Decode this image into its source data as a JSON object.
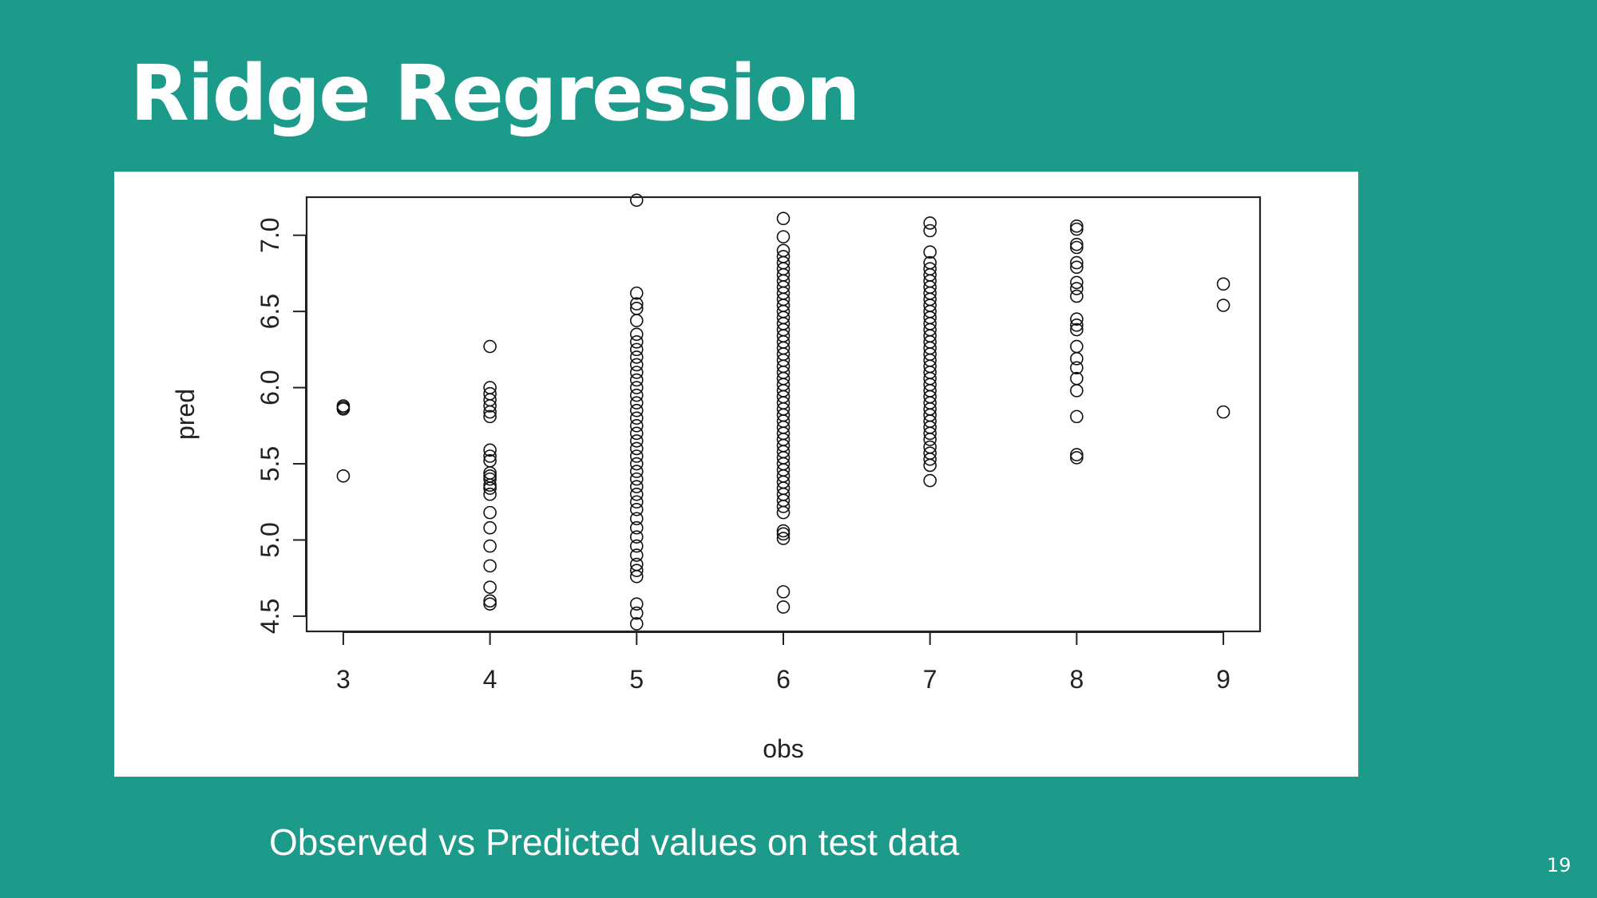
{
  "slide": {
    "title": "Ridge Regression",
    "caption": "Observed vs Predicted values on test data",
    "page_number": "19",
    "background_color": "#1c9a8a"
  },
  "chart_data": {
    "type": "scatter",
    "title": "",
    "xlabel": "obs",
    "ylabel": "pred",
    "xlim": [
      2.75,
      9.25
    ],
    "ylim": [
      4.4,
      7.25
    ],
    "x_ticks": [
      3,
      4,
      5,
      6,
      7,
      8,
      9
    ],
    "y_ticks": [
      4.5,
      5.0,
      5.5,
      6.0,
      6.5,
      7.0
    ],
    "x_tick_labels": [
      "3",
      "4",
      "5",
      "6",
      "7",
      "8",
      "9"
    ],
    "y_tick_labels": [
      "4.5",
      "5.0",
      "5.5",
      "6.0",
      "6.5",
      "7.0"
    ],
    "grid": false,
    "marker": "open-circle",
    "groups": [
      {
        "x": 3,
        "y": [
          5.42,
          5.86,
          5.87,
          5.88
        ]
      },
      {
        "x": 4,
        "y": [
          4.58,
          4.6,
          4.69,
          4.83,
          4.96,
          5.08,
          5.18,
          5.3,
          5.34,
          5.36,
          5.4,
          5.42,
          5.44,
          5.52,
          5.55,
          5.59,
          5.81,
          5.84,
          5.88,
          5.92,
          5.96,
          6.0,
          6.27
        ]
      },
      {
        "x": 5,
        "y": [
          4.45,
          4.52,
          4.58,
          4.76,
          4.8,
          4.84,
          4.9,
          4.96,
          5.02,
          5.08,
          5.14,
          5.2,
          5.25,
          5.3,
          5.35,
          5.4,
          5.45,
          5.5,
          5.55,
          5.6,
          5.65,
          5.7,
          5.75,
          5.8,
          5.85,
          5.9,
          5.95,
          6.0,
          6.05,
          6.1,
          6.15,
          6.2,
          6.25,
          6.3,
          6.35,
          6.44,
          6.52,
          6.55,
          6.62,
          7.23
        ]
      },
      {
        "x": 6,
        "y": [
          4.56,
          4.66,
          5.01,
          5.04,
          5.06,
          5.18,
          5.22,
          5.26,
          5.3,
          5.34,
          5.38,
          5.42,
          5.46,
          5.5,
          5.54,
          5.58,
          5.62,
          5.66,
          5.7,
          5.74,
          5.78,
          5.82,
          5.86,
          5.9,
          5.94,
          5.98,
          6.02,
          6.06,
          6.1,
          6.14,
          6.18,
          6.22,
          6.26,
          6.3,
          6.34,
          6.38,
          6.42,
          6.46,
          6.5,
          6.54,
          6.58,
          6.62,
          6.66,
          6.7,
          6.74,
          6.78,
          6.82,
          6.86,
          6.9,
          6.99,
          7.11
        ]
      },
      {
        "x": 7,
        "y": [
          5.39,
          5.49,
          5.53,
          5.57,
          5.61,
          5.66,
          5.7,
          5.74,
          5.78,
          5.82,
          5.86,
          5.9,
          5.94,
          5.98,
          6.02,
          6.06,
          6.1,
          6.14,
          6.18,
          6.22,
          6.26,
          6.3,
          6.34,
          6.38,
          6.42,
          6.46,
          6.5,
          6.54,
          6.58,
          6.62,
          6.66,
          6.7,
          6.74,
          6.78,
          6.82,
          6.89,
          7.03,
          7.08
        ]
      },
      {
        "x": 8,
        "y": [
          5.54,
          5.56,
          5.81,
          5.98,
          6.06,
          6.13,
          6.19,
          6.27,
          6.38,
          6.41,
          6.45,
          6.6,
          6.65,
          6.69,
          6.79,
          6.82,
          6.92,
          6.94,
          7.04,
          7.06
        ]
      },
      {
        "x": 9,
        "y": [
          5.84,
          6.54,
          6.68
        ]
      }
    ]
  }
}
